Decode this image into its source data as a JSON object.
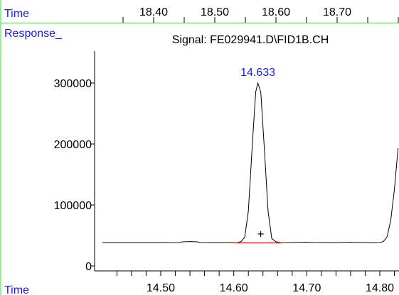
{
  "chart_data": {
    "type": "line",
    "title": "Signal: FE029941.D\\FID1B.CH",
    "xlabel": "Time",
    "ylabel": "Response_",
    "top_axis_label": "Time",
    "top_ticks": [
      "18.40",
      "18.50",
      "18.60",
      "18.70"
    ],
    "x_ticks": [
      14.5,
      14.6,
      14.7,
      14.8
    ],
    "x_tick_labels": [
      "14.50",
      "14.60",
      "14.70",
      "14.80"
    ],
    "y_ticks": [
      0,
      100000,
      200000,
      300000
    ],
    "y_tick_labels": [
      "0",
      "100000",
      "200000",
      "300000"
    ],
    "xlim": [
      14.42,
      14.83
    ],
    "ylim": [
      -5000,
      355000
    ],
    "grid": false,
    "peak_label": "14.633",
    "peak_marker": "+",
    "baseline_color": "#e8322a",
    "accent_color": "#1a1aff",
    "frame_color": "#7ee07e",
    "signal": [
      [
        14.42,
        38000
      ],
      [
        14.45,
        38000
      ],
      [
        14.5,
        38000
      ],
      [
        14.525,
        38200
      ],
      [
        14.53,
        39500
      ],
      [
        14.54,
        40000
      ],
      [
        14.55,
        39500
      ],
      [
        14.555,
        38200
      ],
      [
        14.57,
        38000
      ],
      [
        14.58,
        38000
      ],
      [
        14.6,
        38000
      ],
      [
        14.605,
        38300
      ],
      [
        14.61,
        40000
      ],
      [
        14.615,
        47000
      ],
      [
        14.62,
        90000
      ],
      [
        14.625,
        190000
      ],
      [
        14.63,
        285000
      ],
      [
        14.633,
        300000
      ],
      [
        14.637,
        285000
      ],
      [
        14.642,
        190000
      ],
      [
        14.647,
        90000
      ],
      [
        14.652,
        45000
      ],
      [
        14.658,
        39500
      ],
      [
        14.665,
        38300
      ],
      [
        14.68,
        38000
      ],
      [
        14.69,
        38800
      ],
      [
        14.7,
        39000
      ],
      [
        14.71,
        38300
      ],
      [
        14.72,
        38000
      ],
      [
        14.745,
        38000
      ],
      [
        14.75,
        38600
      ],
      [
        14.76,
        39000
      ],
      [
        14.77,
        38300
      ],
      [
        14.79,
        38000
      ],
      [
        14.8,
        38300
      ],
      [
        14.805,
        40000
      ],
      [
        14.81,
        48000
      ],
      [
        14.815,
        75000
      ],
      [
        14.82,
        125000
      ],
      [
        14.825,
        193000
      ]
    ],
    "baseline": [
      [
        14.6,
        38000
      ],
      [
        14.665,
        38000
      ]
    ],
    "marker_point": [
      14.637,
      53000
    ]
  }
}
